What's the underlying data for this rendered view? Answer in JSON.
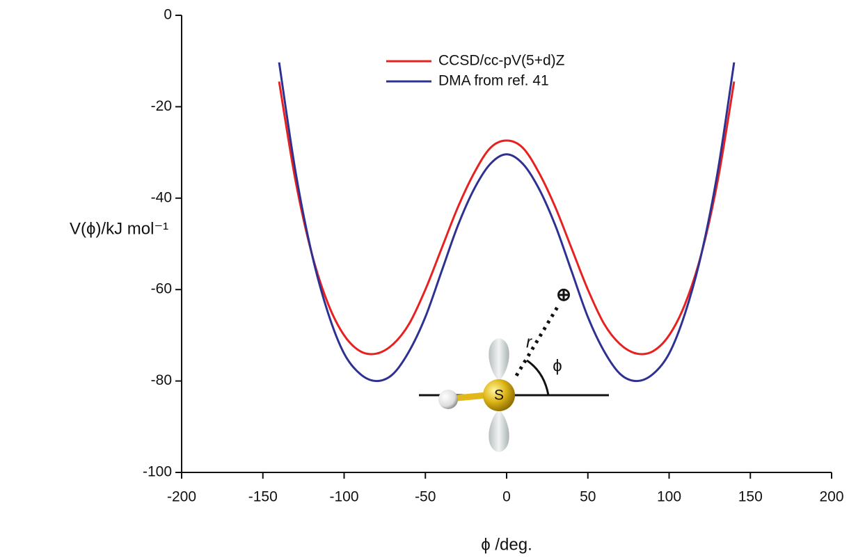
{
  "chart_data": {
    "type": "line",
    "xlabel": "ϕ /deg.",
    "ylabel": "V(ϕ)/kJ mol⁻¹",
    "x": [
      -140,
      -130,
      -120,
      -110,
      -100,
      -90,
      -80,
      -70,
      -60,
      -50,
      -40,
      -30,
      -20,
      -10,
      0,
      10,
      20,
      30,
      40,
      50,
      60,
      70,
      80,
      90,
      100,
      110,
      120,
      130,
      140
    ],
    "series": [
      {
        "name": "CCSD/cc-pV(5+d)Z",
        "color": "#e8201f",
        "values": [
          -14.5,
          -36,
          -52,
          -63,
          -70,
          -73.5,
          -74,
          -72,
          -67.5,
          -60,
          -51,
          -42,
          -34.5,
          -29,
          -27.4,
          -29,
          -34.5,
          -42,
          -51,
          -60,
          -67.5,
          -72,
          -74,
          -73.5,
          -70,
          -63,
          -52,
          -36,
          -14.5
        ]
      },
      {
        "name": "DMA from ref. 41",
        "color": "#2e3192",
        "values": [
          -10.3,
          -34,
          -52,
          -65,
          -74,
          -78.5,
          -80,
          -78.5,
          -73.5,
          -66,
          -56,
          -46,
          -38,
          -32.5,
          -30.4,
          -32.5,
          -38,
          -46,
          -56,
          -66,
          -73.5,
          -78.5,
          -80,
          -78.5,
          -74,
          -65,
          -52,
          -34,
          -10.3
        ]
      }
    ],
    "xlim": [
      -200,
      200
    ],
    "ylim": [
      -100,
      0
    ],
    "xticks": [
      -200,
      -150,
      -100,
      -50,
      0,
      50,
      100,
      150,
      200
    ],
    "yticks": [
      -100,
      -80,
      -60,
      -40,
      -20,
      0
    ],
    "legend": "upper center",
    "annotations": [
      "S",
      "r",
      "ϕ",
      "⊕"
    ]
  }
}
